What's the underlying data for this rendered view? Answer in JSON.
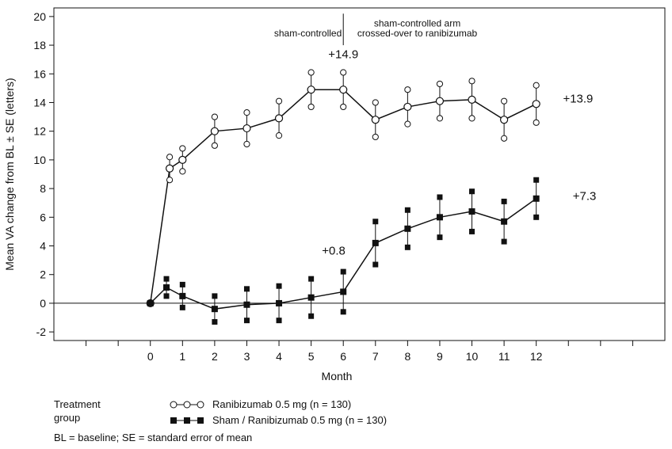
{
  "chart_data": {
    "type": "line",
    "xlabel": "Month",
    "ylabel": "Mean VA change from BL ± SE (letters)",
    "xlim": [
      -3,
      16
    ],
    "ylim": [
      -2.6,
      20.6
    ],
    "x_ticks": [
      0,
      1,
      2,
      3,
      4,
      5,
      6,
      7,
      8,
      9,
      10,
      11,
      12
    ],
    "y_ticks": [
      -2,
      0,
      2,
      4,
      6,
      8,
      10,
      12,
      14,
      16,
      18,
      20
    ],
    "extra_x_tick_marks": [
      -2,
      -1,
      13,
      14,
      15
    ],
    "series": [
      {
        "name": "Ranibizumab 0.5 mg (n = 130)",
        "marker": "open-circle",
        "color": "#111111",
        "x": [
          0,
          0.6,
          1,
          2,
          3,
          4,
          5,
          6,
          7,
          8,
          9,
          10,
          11,
          12
        ],
        "y": [
          0,
          9.4,
          10.0,
          12.0,
          12.2,
          12.9,
          14.9,
          14.9,
          12.8,
          13.7,
          14.1,
          14.2,
          12.8,
          13.9
        ],
        "se": [
          0,
          0.8,
          0.8,
          1.0,
          1.1,
          1.2,
          1.2,
          1.2,
          1.2,
          1.2,
          1.2,
          1.3,
          1.3,
          1.3
        ]
      },
      {
        "name": "Sham / Ranibizumab 0.5 mg (n = 130)",
        "marker": "filled-square",
        "color": "#111111",
        "x": [
          0,
          0.5,
          1,
          2,
          3,
          4,
          5,
          6,
          7,
          8,
          9,
          10,
          11,
          12
        ],
        "y": [
          0,
          1.1,
          0.5,
          -0.4,
          -0.1,
          0.0,
          0.4,
          0.8,
          4.2,
          5.2,
          6.0,
          6.4,
          5.7,
          7.3
        ],
        "se": [
          0,
          0.6,
          0.8,
          0.9,
          1.1,
          1.2,
          1.3,
          1.4,
          1.5,
          1.3,
          1.4,
          1.4,
          1.4,
          1.3
        ]
      }
    ],
    "annotations": [
      {
        "text": "sham-controlled",
        "x": 4.9,
        "y": 18.6
      },
      {
        "text": "sham-controlled arm",
        "x": 8.3,
        "y": 19.3
      },
      {
        "text": "crossed-over to ranibizumab",
        "x": 8.3,
        "y": 18.6
      },
      {
        "text": "+14.9",
        "x": 6.0,
        "y": 17.1
      },
      {
        "text": "+13.9",
        "x": 13.3,
        "y": 14.0
      },
      {
        "text": "+0.8",
        "x": 5.7,
        "y": 3.4
      },
      {
        "text": "+7.3",
        "x": 13.5,
        "y": 7.2
      }
    ],
    "period_divider_x": 6,
    "reference_line_y": 0,
    "grid": false,
    "legend_position": "bottom-left"
  },
  "legend": {
    "title": "Treatment group",
    "items": [
      {
        "label": "Ranibizumab 0.5 mg (n = 130)",
        "marker": "open-circle"
      },
      {
        "label": "Sham / Ranibizumab 0.5 mg (n = 130)",
        "marker": "filled-square"
      }
    ]
  },
  "footnote": "BL = baseline; SE = standard error of mean"
}
